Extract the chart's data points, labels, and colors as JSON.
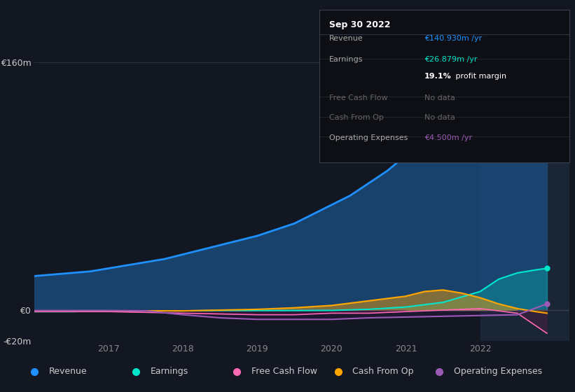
{
  "bg_color": "#131722",
  "plot_bg_color": "#131722",
  "grid_color": "#2a2e39",
  "ylim": [
    -20,
    170
  ],
  "yticks": [
    -20,
    0,
    160
  ],
  "ytick_labels": [
    "-€20m",
    "€0",
    "€160m"
  ],
  "xlim_start": 2016.0,
  "xlim_end": 2023.2,
  "shade_start": 2022.0,
  "xtick_years": [
    2017,
    2018,
    2019,
    2020,
    2021,
    2022
  ],
  "revenue_color": "#1e90ff",
  "earnings_color": "#00e5cc",
  "fcf_color": "#ff69b4",
  "cashop_color": "#ffa500",
  "opex_color": "#9b59b6",
  "revenue_x": [
    2016.0,
    2016.25,
    2016.5,
    2016.75,
    2017.0,
    2017.25,
    2017.5,
    2017.75,
    2018.0,
    2018.25,
    2018.5,
    2018.75,
    2019.0,
    2019.25,
    2019.5,
    2019.75,
    2020.0,
    2020.25,
    2020.5,
    2020.75,
    2021.0,
    2021.25,
    2021.5,
    2021.75,
    2022.0,
    2022.25,
    2022.5,
    2022.75,
    2022.9
  ],
  "revenue_y": [
    22,
    23,
    24,
    25,
    27,
    29,
    31,
    33,
    36,
    39,
    42,
    45,
    48,
    52,
    56,
    62,
    68,
    74,
    82,
    90,
    100,
    110,
    118,
    125,
    133,
    141,
    148,
    153,
    158
  ],
  "earnings_x": [
    2016.0,
    2016.5,
    2017.0,
    2017.5,
    2018.0,
    2018.5,
    2019.0,
    2019.5,
    2020.0,
    2020.5,
    2021.0,
    2021.5,
    2022.0,
    2022.25,
    2022.5,
    2022.75,
    2022.9
  ],
  "earnings_y": [
    -1,
    -1,
    -0.5,
    -0.5,
    -0.5,
    -0.3,
    -0.3,
    -0.3,
    -0.2,
    0.5,
    2,
    5,
    12,
    20,
    24,
    26,
    27
  ],
  "fcf_x": [
    2016.0,
    2016.5,
    2017.0,
    2017.5,
    2018.0,
    2018.5,
    2019.0,
    2019.5,
    2020.0,
    2020.5,
    2021.0,
    2021.5,
    2022.0,
    2022.5,
    2022.9
  ],
  "fcf_y": [
    -1,
    -1,
    -1,
    -1.5,
    -2,
    -2.5,
    -3,
    -3,
    -2,
    -2,
    -1,
    0,
    1,
    -2,
    -15
  ],
  "cashop_x": [
    2016.0,
    2016.5,
    2017.0,
    2017.5,
    2018.0,
    2018.5,
    2019.0,
    2019.5,
    2020.0,
    2020.5,
    2021.0,
    2021.25,
    2021.5,
    2021.75,
    2022.0,
    2022.25,
    2022.5,
    2022.75,
    2022.9
  ],
  "cashop_y": [
    -0.5,
    -0.5,
    -0.5,
    -0.5,
    -0.5,
    0,
    0.5,
    1.5,
    3,
    6,
    9,
    12,
    13,
    11,
    8,
    4,
    1,
    -1,
    -2
  ],
  "opex_x": [
    2016.0,
    2016.5,
    2017.0,
    2017.5,
    2018.0,
    2018.25,
    2018.5,
    2018.75,
    2019.0,
    2019.5,
    2020.0,
    2020.5,
    2021.0,
    2021.5,
    2022.0,
    2022.5,
    2022.9
  ],
  "opex_y": [
    -0.3,
    -0.3,
    -0.3,
    -0.5,
    -3,
    -4,
    -5,
    -5.5,
    -6,
    -6,
    -6,
    -5,
    -4.5,
    -4,
    -3.5,
    -3,
    4
  ],
  "tooltip_title": "Sep 30 2022",
  "tooltip_rows": [
    {
      "label": "Revenue",
      "value": "€140.930m /yr",
      "value_color": "#1e90ff",
      "dim": false,
      "bold_pct": false
    },
    {
      "label": "Earnings",
      "value": "€26.879m /yr",
      "value_color": "#00e5cc",
      "dim": false,
      "bold_pct": false
    },
    {
      "label": "",
      "value": "19.1% profit margin",
      "value_color": "#ffffff",
      "dim": false,
      "bold_pct": true
    },
    {
      "label": "Free Cash Flow",
      "value": "No data",
      "value_color": "#666666",
      "dim": true,
      "bold_pct": false
    },
    {
      "label": "Cash From Op",
      "value": "No data",
      "value_color": "#666666",
      "dim": true,
      "bold_pct": false
    },
    {
      "label": "Operating Expenses",
      "value": "€4.500m /yr",
      "value_color": "#9b59b6",
      "dim": false,
      "bold_pct": false
    }
  ],
  "legend_items": [
    {
      "label": "Revenue",
      "color": "#1e90ff"
    },
    {
      "label": "Earnings",
      "color": "#00e5cc"
    },
    {
      "label": "Free Cash Flow",
      "color": "#ff69b4"
    },
    {
      "label": "Cash From Op",
      "color": "#ffa500"
    },
    {
      "label": "Operating Expenses",
      "color": "#9b59b6"
    }
  ]
}
